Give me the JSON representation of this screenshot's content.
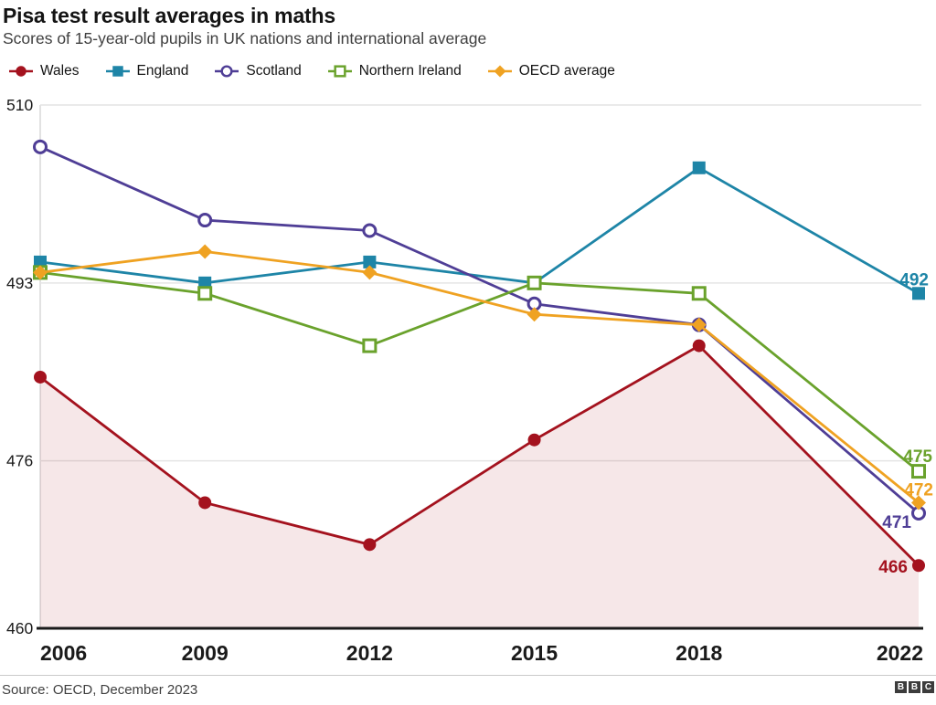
{
  "header": {
    "title": "Pisa test result  averages in maths",
    "subtitle": "Scores of 15-year-old pupils in UK nations and international average"
  },
  "chart_data": {
    "type": "line",
    "title": "Pisa test result  averages in maths",
    "subtitle": "Scores of 15-year-old pupils in UK nations and international average",
    "x": [
      2006,
      2009,
      2012,
      2015,
      2018,
      2022
    ],
    "x_tick_labels": [
      "2006",
      "2009",
      "2012",
      "2015",
      "2018",
      "2022"
    ],
    "ylim": [
      460,
      510
    ],
    "yticks": [
      510,
      493,
      476,
      460
    ],
    "grid": "horizontal",
    "legend_position": "top",
    "series": [
      {
        "name": "Wales",
        "color": "#a4121e",
        "marker": "circle",
        "fill_area": true,
        "fill_opacity": 0.1,
        "values": [
          484,
          472,
          468,
          478,
          487,
          466
        ],
        "end_label": "466",
        "end_label_pos": {
          "anchor": "end",
          "dx": -12,
          "dy": 8
        }
      },
      {
        "name": "England",
        "color": "#1e85a7",
        "marker": "square",
        "fill_area": false,
        "values": [
          495,
          493,
          495,
          493,
          504,
          492
        ],
        "end_label": "492",
        "end_label_pos": {
          "anchor": "end",
          "dx": 11,
          "dy": -9
        }
      },
      {
        "name": "Scotland",
        "color": "#4f3e96",
        "marker": "circle-open",
        "fill_area": false,
        "values": [
          506,
          499,
          498,
          491,
          489,
          471
        ],
        "end_label": "471",
        "end_label_pos": {
          "anchor": "end",
          "dx": -8,
          "dy": 16
        }
      },
      {
        "name": "Northern Ireland",
        "color": "#6aa22c",
        "marker": "square-open",
        "fill_area": false,
        "values": [
          494,
          492,
          487,
          493,
          492,
          475
        ],
        "end_label": "475",
        "end_label_pos": {
          "anchor": "end",
          "dx": 15,
          "dy": -10
        }
      },
      {
        "name": "OECD average",
        "color": "#efa222",
        "marker": "diamond",
        "fill_area": false,
        "values": [
          494,
          496,
          494,
          490,
          489,
          472
        ],
        "end_label": "472",
        "end_label_pos": {
          "anchor": "end",
          "dx": 16,
          "dy": -8
        }
      }
    ],
    "draw_order": [
      1,
      2,
      3,
      4,
      0
    ],
    "colors": {
      "gridline": "#e4e4e4",
      "axis_line": "#d8d8d8",
      "baseline": "#1a1a1a",
      "tick_label": "#1a1a1a",
      "year_label": "#1a1a1a"
    }
  },
  "footer": {
    "source": "Source: OECD, December 2023",
    "logo_letters": [
      "B",
      "B",
      "C"
    ]
  }
}
